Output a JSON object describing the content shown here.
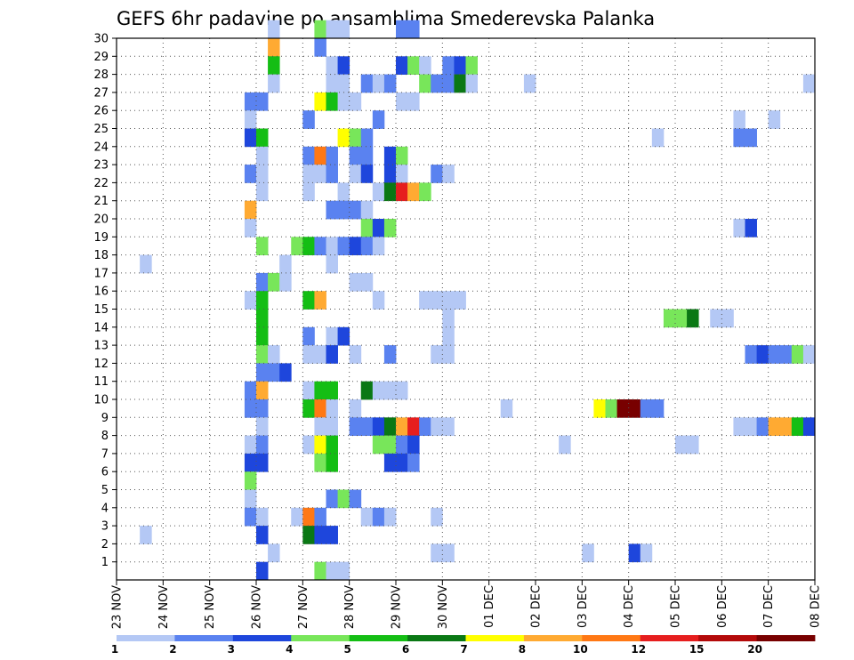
{
  "chart_data": {
    "type": "heatmap",
    "title": "GEFS 6hr padavine po ansamblima Smederevska Palanka",
    "xlabel": "",
    "ylabel": "",
    "x_tick_labels": [
      "23 NOV",
      "24 NOV",
      "25 NOV",
      "26 NOV",
      "27 NOV",
      "28 NOV",
      "29 NOV",
      "30 NOV",
      "01 DEC",
      "02 DEC",
      "03 DEC",
      "04 DEC",
      "05 DEC",
      "06 DEC",
      "07 DEC",
      "08 DEC"
    ],
    "y_tick_labels": [
      "1",
      "2",
      "3",
      "4",
      "5",
      "6",
      "7",
      "8",
      "9",
      "10",
      "11",
      "12",
      "13",
      "14",
      "15",
      "16",
      "17",
      "18",
      "19",
      "20",
      "21",
      "22",
      "23",
      "24",
      "25",
      "26",
      "27",
      "28",
      "29",
      "30"
    ],
    "x_range_steps": [
      0,
      60
    ],
    "y_range": [
      0,
      30
    ],
    "time_step_hours": 6,
    "colorbar": {
      "levels": [
        "1",
        "2",
        "3",
        "4",
        "5",
        "6",
        "7",
        "8",
        "10",
        "12",
        "15",
        "20"
      ],
      "colors": [
        "#b4c8f5",
        "#5a82f0",
        "#1e46dc",
        "#78e65a",
        "#14be14",
        "#0a7814",
        "#ffff00",
        "#ffaa32",
        "#ff7814",
        "#e61e1e",
        "#b40a0a",
        "#780000"
      ]
    },
    "cells": [
      [
        30,
        13,
        0
      ],
      [
        30,
        17,
        3
      ],
      [
        30,
        18,
        0
      ],
      [
        30,
        19,
        0
      ],
      [
        30,
        24,
        1
      ],
      [
        30,
        25,
        1
      ],
      [
        29,
        13,
        7
      ],
      [
        29,
        17,
        1
      ],
      [
        28,
        13,
        4
      ],
      [
        28,
        18,
        0
      ],
      [
        28,
        19,
        2
      ],
      [
        28,
        24,
        2
      ],
      [
        28,
        25,
        3
      ],
      [
        28,
        26,
        0
      ],
      [
        28,
        28,
        1
      ],
      [
        28,
        29,
        2
      ],
      [
        28,
        30,
        3
      ],
      [
        27,
        13,
        0
      ],
      [
        27,
        18,
        0
      ],
      [
        27,
        19,
        0
      ],
      [
        27,
        21,
        1
      ],
      [
        27,
        22,
        0
      ],
      [
        27,
        23,
        1
      ],
      [
        27,
        26,
        3
      ],
      [
        27,
        27,
        1
      ],
      [
        27,
        28,
        1
      ],
      [
        27,
        29,
        5
      ],
      [
        27,
        30,
        0
      ],
      [
        27,
        35,
        0
      ],
      [
        27,
        59,
        0
      ],
      [
        26,
        11,
        1
      ],
      [
        26,
        12,
        1
      ],
      [
        26,
        17,
        6
      ],
      [
        26,
        18,
        4
      ],
      [
        26,
        19,
        0
      ],
      [
        26,
        20,
        0
      ],
      [
        26,
        24,
        0
      ],
      [
        26,
        25,
        0
      ],
      [
        25,
        11,
        0
      ],
      [
        25,
        16,
        1
      ],
      [
        25,
        22,
        1
      ],
      [
        25,
        53,
        0
      ],
      [
        25,
        56,
        0
      ],
      [
        24,
        11,
        2
      ],
      [
        24,
        12,
        4
      ],
      [
        24,
        19,
        6
      ],
      [
        24,
        20,
        3
      ],
      [
        24,
        21,
        1
      ],
      [
        24,
        46,
        0
      ],
      [
        24,
        53,
        1
      ],
      [
        24,
        54,
        1
      ],
      [
        23,
        12,
        0
      ],
      [
        23,
        16,
        1
      ],
      [
        23,
        17,
        8
      ],
      [
        23,
        18,
        1
      ],
      [
        23,
        20,
        1
      ],
      [
        23,
        21,
        1
      ],
      [
        23,
        23,
        2
      ],
      [
        23,
        24,
        3
      ],
      [
        22,
        11,
        1
      ],
      [
        22,
        12,
        0
      ],
      [
        22,
        16,
        0
      ],
      [
        22,
        17,
        0
      ],
      [
        22,
        18,
        1
      ],
      [
        22,
        20,
        0
      ],
      [
        22,
        21,
        2
      ],
      [
        22,
        23,
        2
      ],
      [
        22,
        24,
        0
      ],
      [
        22,
        27,
        1
      ],
      [
        22,
        28,
        0
      ],
      [
        21,
        12,
        0
      ],
      [
        21,
        16,
        0
      ],
      [
        21,
        19,
        0
      ],
      [
        21,
        22,
        0
      ],
      [
        21,
        23,
        5
      ],
      [
        21,
        24,
        9
      ],
      [
        21,
        25,
        7
      ],
      [
        21,
        26,
        3
      ],
      [
        20,
        11,
        7
      ],
      [
        20,
        18,
        1
      ],
      [
        20,
        19,
        1
      ],
      [
        20,
        20,
        1
      ],
      [
        20,
        21,
        0
      ],
      [
        19,
        11,
        0
      ],
      [
        19,
        21,
        3
      ],
      [
        19,
        22,
        2
      ],
      [
        19,
        23,
        3
      ],
      [
        19,
        53,
        0
      ],
      [
        19,
        54,
        2
      ],
      [
        18,
        12,
        3
      ],
      [
        18,
        15,
        3
      ],
      [
        18,
        16,
        4
      ],
      [
        18,
        17,
        1
      ],
      [
        18,
        18,
        0
      ],
      [
        18,
        19,
        1
      ],
      [
        18,
        20,
        2
      ],
      [
        18,
        21,
        1
      ],
      [
        18,
        22,
        0
      ],
      [
        17,
        2,
        0
      ],
      [
        17,
        14,
        0
      ],
      [
        17,
        18,
        0
      ],
      [
        16,
        12,
        1
      ],
      [
        16,
        13,
        3
      ],
      [
        16,
        14,
        0
      ],
      [
        16,
        20,
        0
      ],
      [
        16,
        21,
        0
      ],
      [
        15,
        11,
        0
      ],
      [
        15,
        12,
        4
      ],
      [
        15,
        16,
        4
      ],
      [
        15,
        17,
        7
      ],
      [
        15,
        22,
        0
      ],
      [
        15,
        26,
        0
      ],
      [
        15,
        27,
        0
      ],
      [
        15,
        28,
        0
      ],
      [
        15,
        29,
        0
      ],
      [
        14,
        12,
        4
      ],
      [
        14,
        28,
        0
      ],
      [
        14,
        47,
        3
      ],
      [
        14,
        48,
        3
      ],
      [
        14,
        49,
        5
      ],
      [
        14,
        51,
        0
      ],
      [
        14,
        52,
        0
      ],
      [
        13,
        12,
        4
      ],
      [
        13,
        16,
        1
      ],
      [
        13,
        18,
        0
      ],
      [
        13,
        19,
        2
      ],
      [
        13,
        28,
        0
      ],
      [
        12,
        12,
        3
      ],
      [
        12,
        13,
        0
      ],
      [
        12,
        16,
        0
      ],
      [
        12,
        17,
        0
      ],
      [
        12,
        18,
        2
      ],
      [
        12,
        20,
        0
      ],
      [
        12,
        23,
        1
      ],
      [
        12,
        27,
        0
      ],
      [
        12,
        28,
        0
      ],
      [
        12,
        54,
        1
      ],
      [
        12,
        55,
        2
      ],
      [
        12,
        56,
        1
      ],
      [
        12,
        57,
        1
      ],
      [
        12,
        58,
        3
      ],
      [
        12,
        59,
        0
      ],
      [
        11,
        12,
        1
      ],
      [
        11,
        13,
        1
      ],
      [
        11,
        14,
        2
      ],
      [
        10,
        11,
        1
      ],
      [
        10,
        12,
        7
      ],
      [
        10,
        16,
        0
      ],
      [
        10,
        17,
        4
      ],
      [
        10,
        18,
        4
      ],
      [
        10,
        21,
        5
      ],
      [
        10,
        22,
        0
      ],
      [
        10,
        23,
        0
      ],
      [
        10,
        24,
        0
      ],
      [
        9,
        11,
        1
      ],
      [
        9,
        12,
        1
      ],
      [
        9,
        16,
        4
      ],
      [
        9,
        17,
        8
      ],
      [
        9,
        18,
        0
      ],
      [
        9,
        20,
        0
      ],
      [
        9,
        33,
        0
      ],
      [
        9,
        41,
        6
      ],
      [
        9,
        42,
        3
      ],
      [
        9,
        43,
        11
      ],
      [
        9,
        44,
        11
      ],
      [
        9,
        45,
        1
      ],
      [
        9,
        46,
        1
      ],
      [
        8,
        12,
        0
      ],
      [
        8,
        17,
        0
      ],
      [
        8,
        18,
        0
      ],
      [
        8,
        20,
        1
      ],
      [
        8,
        21,
        1
      ],
      [
        8,
        22,
        2
      ],
      [
        8,
        23,
        5
      ],
      [
        8,
        24,
        7
      ],
      [
        8,
        25,
        9
      ],
      [
        8,
        26,
        1
      ],
      [
        8,
        27,
        0
      ],
      [
        8,
        28,
        0
      ],
      [
        8,
        53,
        0
      ],
      [
        8,
        54,
        0
      ],
      [
        8,
        55,
        1
      ],
      [
        8,
        56,
        7
      ],
      [
        8,
        57,
        7
      ],
      [
        8,
        58,
        4
      ],
      [
        8,
        59,
        2
      ],
      [
        7,
        11,
        0
      ],
      [
        7,
        12,
        1
      ],
      [
        7,
        16,
        0
      ],
      [
        7,
        17,
        6
      ],
      [
        7,
        18,
        4
      ],
      [
        7,
        22,
        3
      ],
      [
        7,
        23,
        3
      ],
      [
        7,
        24,
        1
      ],
      [
        7,
        25,
        2
      ],
      [
        7,
        38,
        0
      ],
      [
        7,
        48,
        0
      ],
      [
        7,
        49,
        0
      ],
      [
        6,
        11,
        2
      ],
      [
        6,
        12,
        2
      ],
      [
        6,
        17,
        3
      ],
      [
        6,
        18,
        4
      ],
      [
        6,
        23,
        2
      ],
      [
        6,
        24,
        2
      ],
      [
        6,
        25,
        1
      ],
      [
        5,
        11,
        3
      ],
      [
        4,
        11,
        0
      ],
      [
        4,
        18,
        1
      ],
      [
        4,
        19,
        3
      ],
      [
        4,
        20,
        1
      ],
      [
        3,
        11,
        1
      ],
      [
        3,
        12,
        0
      ],
      [
        3,
        15,
        0
      ],
      [
        3,
        16,
        8
      ],
      [
        3,
        17,
        1
      ],
      [
        3,
        21,
        0
      ],
      [
        3,
        22,
        1
      ],
      [
        3,
        23,
        0
      ],
      [
        3,
        27,
        0
      ],
      [
        2,
        2,
        0
      ],
      [
        2,
        12,
        2
      ],
      [
        2,
        16,
        5
      ],
      [
        2,
        17,
        2
      ],
      [
        2,
        18,
        2
      ],
      [
        1,
        13,
        0
      ],
      [
        1,
        27,
        0
      ],
      [
        1,
        28,
        0
      ],
      [
        1,
        40,
        0
      ],
      [
        1,
        44,
        2
      ],
      [
        1,
        45,
        0
      ],
      [
        0,
        12,
        2
      ],
      [
        0,
        17,
        3
      ],
      [
        0,
        18,
        0
      ],
      [
        0,
        19,
        0
      ]
    ]
  }
}
